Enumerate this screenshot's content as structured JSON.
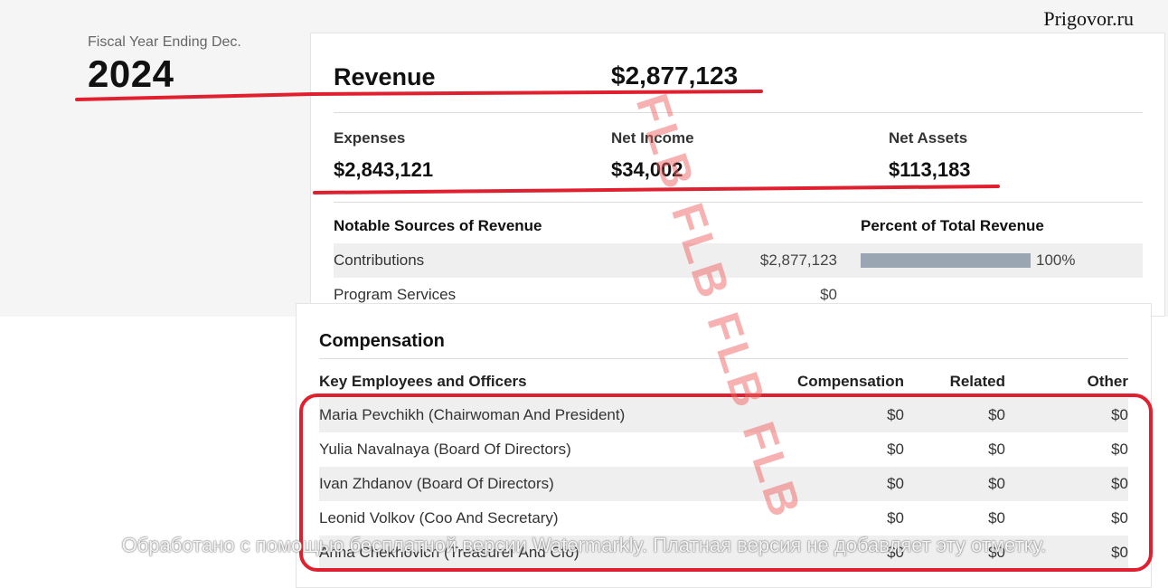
{
  "site_label": "Prigovor.ru",
  "fiscal_year": {
    "label": "Fiscal Year Ending Dec.",
    "year": "2024"
  },
  "revenue": {
    "label": "Revenue",
    "value": "$2,877,123"
  },
  "stats": [
    {
      "label": "Expenses",
      "value": "$2,843,121"
    },
    {
      "label": "Net Income",
      "value": "$34,002"
    },
    {
      "label": "Net Assets",
      "value": "$113,183"
    }
  ],
  "sources": {
    "header": "Notable Sources of Revenue",
    "percent_header": "Percent of Total Revenue",
    "rows": [
      {
        "name": "Contributions",
        "amount": "$2,877,123",
        "percent": "100%",
        "percent_value": 100
      },
      {
        "name": "Program Services",
        "amount": "$0"
      }
    ]
  },
  "compensation": {
    "title": "Compensation",
    "headers": {
      "name": "Key Employees and Officers",
      "compensation": "Compensation",
      "related": "Related",
      "other": "Other"
    },
    "rows": [
      {
        "name": "Maria Pevchikh (Chairwoman And President)",
        "compensation": "$0",
        "related": "$0",
        "other": "$0"
      },
      {
        "name": "Yulia Navalnaya (Board Of Directors)",
        "compensation": "$0",
        "related": "$0",
        "other": "$0"
      },
      {
        "name": "Ivan Zhdanov (Board Of Directors)",
        "compensation": "$0",
        "related": "$0",
        "other": "$0"
      },
      {
        "name": "Leonid Volkov (Coo And Secretary)",
        "compensation": "$0",
        "related": "$0",
        "other": "$0"
      },
      {
        "name": "Anna Chekhovich (Treasurer And Cfo)",
        "compensation": "$0",
        "related": "$0",
        "other": "$0"
      }
    ]
  },
  "watermarks": {
    "flb": "FLB FLB FLB FLB",
    "footer": "Обработано с помощью бесплатной версии Watermarkly. Платная версия не добавляет эту отметку."
  },
  "colors": {
    "annotation_red": "#e0202e",
    "bar": "#9aa7b2"
  }
}
